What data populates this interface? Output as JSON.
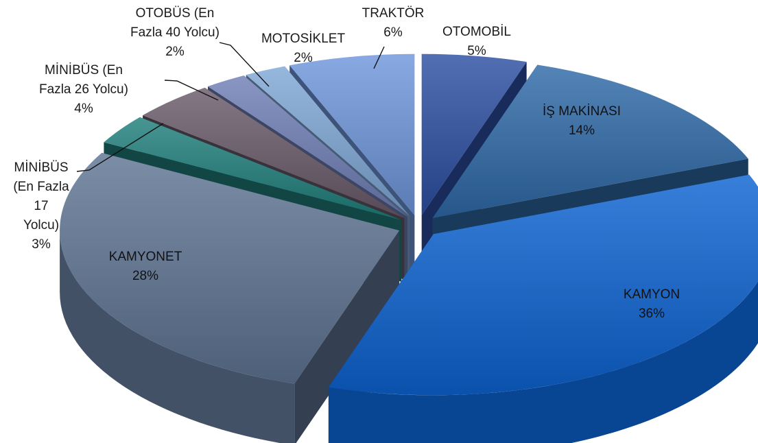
{
  "chart_data": {
    "type": "pie",
    "title": "",
    "three_d": true,
    "exploded": true,
    "slices": [
      {
        "label": "OTOMOBİL",
        "value": 5,
        "percent_label": "5%",
        "color": "#2c4fa3"
      },
      {
        "label": "İŞ MAKİNASI",
        "value": 14,
        "percent_label": "14%",
        "color": "#2f6aa8"
      },
      {
        "label": "KAMYON",
        "value": 36,
        "percent_label": "36%",
        "color": "#0c63d2"
      },
      {
        "label": "KAMYONET",
        "value": 28,
        "percent_label": "28%",
        "color": "#5f7493"
      },
      {
        "label": "MİNİBÜS (En Fazla 17 Yolcu)",
        "value": 3,
        "percent_label": "3%",
        "color": "#1f7f7c"
      },
      {
        "label": "MİNİBÜS (En Fazla 26 Yolcu)",
        "value": 4,
        "percent_label": "4%",
        "color": "#6a5a6a"
      },
      {
        "label": "OTOBÜS (En Fazla 40 Yolcu)",
        "value": 2,
        "percent_label": "2%",
        "color": "#6f7eb6"
      },
      {
        "label": "MOTOSİKLET",
        "value": 2,
        "percent_label": "2%",
        "color": "#7fa8d6"
      },
      {
        "label": "TRAKTÖR",
        "value": 6,
        "percent_label": "6%",
        "color": "#6f96dc"
      }
    ]
  }
}
